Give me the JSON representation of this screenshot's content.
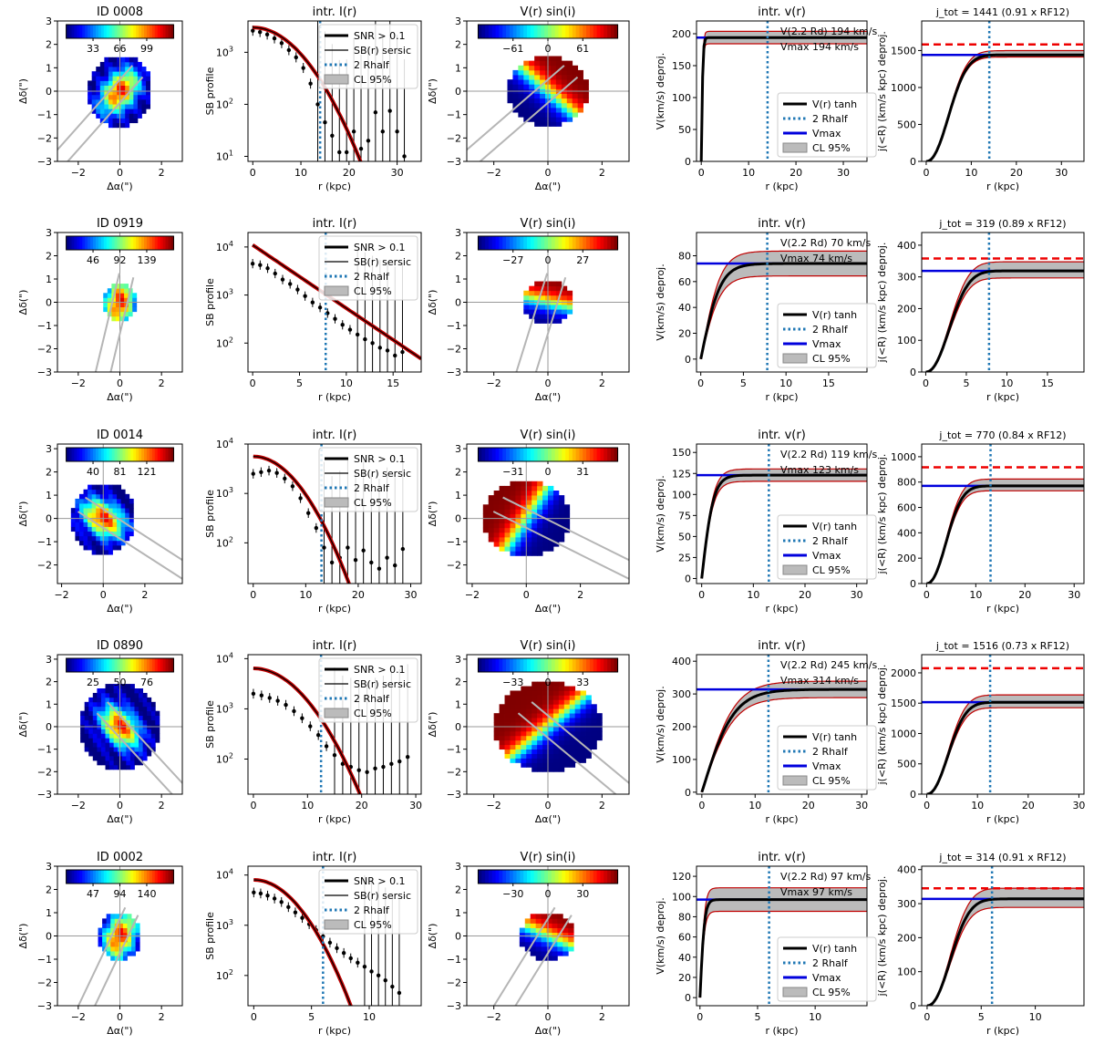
{
  "figure": {
    "panel_titles": [
      "intr. I(r)",
      "V(r) sin(i)",
      "intr. v(r)"
    ],
    "axis_labels": {
      "map_x": "Δα(\")",
      "map_y": "Δδ(\")",
      "sb_y": "SB profile",
      "r_x": "r (kpc)",
      "v_y": "V(km/s) deproj.",
      "j_y": "j(<R) (km/s kpc) deproj."
    },
    "legend_sb": [
      "SNR > 0.1",
      "SB(r) sersic",
      "2 Rhalf",
      "CL 95%"
    ],
    "legend_v": [
      "V(r) tanh",
      "2 Rhalf",
      "Vmax",
      "CL 95%"
    ],
    "colors": {
      "model": "#000000",
      "model_red": "#c00000",
      "rhalf": "#1f77b4",
      "vmax": "#0000dd",
      "jref": "#ee0000",
      "band": "#bbbbbb",
      "axis": "#999999"
    }
  },
  "chart_data": [
    {
      "type": "line",
      "galaxy_id": "ID 0008",
      "flux_map": {
        "title": "ID 0008",
        "cbar_ticks": [
          "33",
          "66",
          "99"
        ],
        "xticks": [
          "−2",
          "0",
          "2"
        ],
        "yticks": [
          "3",
          "2",
          "1",
          "0",
          "−1",
          "−2",
          "−3"
        ],
        "xlim": [
          -3,
          3
        ],
        "ylim": [
          -3,
          3
        ],
        "radius_arcsec": 1.55,
        "pa_deg": 45
      },
      "sb_profile": {
        "title": "intr. I(r)",
        "yscale": "log",
        "ylim": [
          8,
          4000
        ],
        "yticks": [
          10,
          100,
          1000
        ],
        "xlim": [
          -1,
          35
        ],
        "xticks": [
          0,
          10,
          20,
          30
        ],
        "rhalf2": 14,
        "model_peak": 3000,
        "model_scale": 9.2,
        "model_n": 2,
        "points": {
          "r": [
            0,
            1.5,
            3,
            4.5,
            6,
            7.5,
            9,
            10.5,
            12,
            13.5,
            15,
            16.5,
            18,
            19.5,
            21,
            22.5,
            24,
            25.5,
            27,
            28.5,
            30,
            31.5
          ],
          "sb": [
            2600,
            2450,
            2200,
            1850,
            1500,
            1100,
            800,
            500,
            250,
            100,
            45,
            25,
            12,
            12,
            30,
            14,
            20,
            70,
            30,
            75,
            30,
            10
          ]
        }
      },
      "vel_map": {
        "title": "V(r) sin(i)",
        "cbar_ticks": [
          "−61",
          "0",
          "61"
        ],
        "xticks": [
          "−2",
          "0",
          "2"
        ],
        "yticks": [
          "3",
          "2",
          "1",
          "0",
          "−1",
          "−2",
          "−3"
        ],
        "radius_arcsec": 1.5,
        "pa_deg": 45
      },
      "rot_curve": {
        "title": "intr. v(r)",
        "xlim": [
          -1,
          35
        ],
        "xticks": [
          0,
          10,
          20,
          30
        ],
        "ylim": [
          0,
          220
        ],
        "yticks": [
          0,
          50,
          100,
          150,
          200
        ],
        "rhalf2": 14,
        "vmax": 194,
        "rt": 0.35,
        "band_frac": 0.05,
        "v22_text": "V(2.2 Rd) 194 km/s",
        "vmax_text": "Vmax 194 km/s"
      },
      "j_profile": {
        "title": "j_tot = 1441 (0.91 x RF12)",
        "xlim": [
          -1,
          35
        ],
        "xticks": [
          0,
          10,
          20,
          30
        ],
        "ylim": [
          0,
          1900
        ],
        "yticks": [
          0,
          500,
          1000,
          1500
        ],
        "rhalf2": 14,
        "jtot": 1441,
        "jref": 1583,
        "scale": 6.5,
        "band_frac": 0.02
      }
    },
    {
      "type": "line",
      "galaxy_id": "ID 0919",
      "flux_map": {
        "title": "ID 0919",
        "cbar_ticks": [
          "46",
          "92",
          "139"
        ],
        "xticks": [
          "−2",
          "0",
          "2"
        ],
        "yticks": [
          "3",
          "2",
          "1",
          "0",
          "−1",
          "−2",
          "−3"
        ],
        "xlim": [
          -3,
          3
        ],
        "ylim": [
          -3,
          3
        ],
        "radius_arcsec": 0.8,
        "pa_deg": 75
      },
      "sb_profile": {
        "title": "intr. I(r)",
        "yscale": "log",
        "ylim": [
          25,
          20000
        ],
        "yticks": [
          100,
          1000,
          10000
        ],
        "xlim": [
          -0.5,
          18
        ],
        "xticks": [
          0,
          5,
          10,
          15
        ],
        "rhalf2": 7.8,
        "model_peak": 11000,
        "model_scale": 3.3,
        "model_n": 1,
        "points": {
          "r": [
            0,
            0.8,
            1.6,
            2.4,
            3.2,
            4,
            4.8,
            5.6,
            6.4,
            7.2,
            8,
            8.8,
            9.6,
            10.4,
            11.2,
            12,
            12.8,
            13.6,
            14.4,
            15.2,
            16
          ],
          "sb": [
            4500,
            4200,
            3600,
            2800,
            2100,
            1700,
            1300,
            950,
            700,
            550,
            420,
            320,
            240,
            190,
            150,
            120,
            100,
            80,
            70,
            55,
            65
          ]
        }
      },
      "vel_map": {
        "title": "V(r) sin(i)",
        "cbar_ticks": [
          "−27",
          "0",
          "27"
        ],
        "xticks": [
          "−2",
          "0",
          "2"
        ],
        "yticks": [
          "3",
          "2",
          "1",
          "0",
          "−1",
          "−2",
          "−3"
        ],
        "radius_arcsec": 0.9,
        "pa_deg": 75
      },
      "rot_curve": {
        "title": "intr. v(r)",
        "xlim": [
          -0.5,
          19.5
        ],
        "xticks": [
          0,
          5,
          10,
          15
        ],
        "ylim": [
          -10,
          98
        ],
        "yticks": [
          0,
          20,
          40,
          60,
          80
        ],
        "rhalf2": 7.8,
        "vmax": 74,
        "rt": 2.3,
        "band_frac": 0.13,
        "v22_text": "V(2.2 Rd) 70 km/s",
        "vmax_text": "Vmax 74 km/s"
      },
      "j_profile": {
        "title": "j_tot = 319 (0.89 x RF12)",
        "xlim": [
          -0.5,
          19.5
        ],
        "xticks": [
          0,
          5,
          10,
          15
        ],
        "ylim": [
          0,
          440
        ],
        "yticks": [
          0,
          100,
          200,
          300,
          400
        ],
        "rhalf2": 7.8,
        "jtot": 319,
        "jref": 358,
        "scale": 3.8,
        "band_frac": 0.07
      }
    },
    {
      "type": "line",
      "galaxy_id": "ID 0014",
      "flux_map": {
        "title": "ID 0014",
        "cbar_ticks": [
          "40",
          "81",
          "121"
        ],
        "xticks": [
          "−2",
          "0",
          "2"
        ],
        "yticks": [
          "3",
          "2",
          "1",
          "0",
          "−1",
          "−2"
        ],
        "xlim": [
          -2.2,
          3.8
        ],
        "ylim": [
          -2.8,
          3.2
        ],
        "radius_arcsec": 1.55,
        "pa_deg": 150
      },
      "sb_profile": {
        "title": "intr. I(r)",
        "yscale": "log",
        "ylim": [
          15,
          10000
        ],
        "yticks": [
          100,
          1000,
          10000
        ],
        "xlim": [
          -1,
          32
        ],
        "xticks": [
          0,
          10,
          20,
          30
        ],
        "rhalf2": 13,
        "model_peak": 5600,
        "model_scale": 7.5,
        "model_n": 2,
        "points": {
          "r": [
            0,
            1.5,
            3,
            4.5,
            6,
            7.5,
            9,
            10.5,
            12,
            13.5,
            15,
            16.5,
            18,
            19.5,
            21,
            22.5,
            24,
            25.5,
            27,
            28.5
          ],
          "sb": [
            2500,
            2700,
            2900,
            2600,
            2000,
            1400,
            800,
            400,
            200,
            80,
            40,
            50,
            80,
            45,
            70,
            40,
            30,
            50,
            35,
            75
          ]
        }
      },
      "vel_map": {
        "title": "V(r) sin(i)",
        "cbar_ticks": [
          "−31",
          "0",
          "31"
        ],
        "xticks": [
          "−2",
          "0",
          "2"
        ],
        "yticks": [
          "3",
          "2",
          "1",
          "0",
          "−1",
          "−2"
        ],
        "radius_arcsec": 1.6,
        "pa_deg": 150
      },
      "rot_curve": {
        "title": "intr. v(r)",
        "xlim": [
          -1,
          32
        ],
        "xticks": [
          0,
          10,
          20,
          30
        ],
        "ylim": [
          -6,
          160
        ],
        "yticks": [
          0,
          25,
          50,
          75,
          100,
          125,
          150
        ],
        "rhalf2": 13,
        "vmax": 123,
        "rt": 2.3,
        "band_frac": 0.06,
        "v22_text": "V(2.2 Rd) 119 km/s",
        "vmax_text": "Vmax 123 km/s"
      },
      "j_profile": {
        "title": "j_tot = 770 (0.84 x RF12)",
        "xlim": [
          -1,
          32
        ],
        "xticks": [
          0,
          10,
          20,
          30
        ],
        "ylim": [
          0,
          1100
        ],
        "yticks": [
          0,
          200,
          400,
          600,
          800,
          1000
        ],
        "rhalf2": 13,
        "jtot": 770,
        "jref": 917,
        "scale": 5.2,
        "band_frac": 0.05
      }
    },
    {
      "type": "line",
      "galaxy_id": "ID 0890",
      "flux_map": {
        "title": "ID 0890",
        "cbar_ticks": [
          "25",
          "50",
          "76"
        ],
        "xticks": [
          "−2",
          "0",
          "2"
        ],
        "yticks": [
          "3",
          "2",
          "1",
          "0",
          "−1",
          "−2",
          "−3"
        ],
        "xlim": [
          -3,
          3
        ],
        "ylim": [
          -3,
          3.2
        ],
        "radius_arcsec": 1.9,
        "pa_deg": 135
      },
      "sb_profile": {
        "title": "intr. I(r)",
        "yscale": "log",
        "ylim": [
          20,
          12000
        ],
        "yticks": [
          100,
          1000,
          10000
        ],
        "xlim": [
          -1,
          31
        ],
        "xticks": [
          0,
          10,
          20,
          30
        ],
        "rhalf2": 12.5,
        "model_peak": 6400,
        "model_scale": 8.2,
        "model_n": 2,
        "points": {
          "r": [
            0,
            1.5,
            3,
            4.5,
            6,
            7.5,
            9,
            10.5,
            12,
            13.5,
            15,
            16.5,
            18,
            19.5,
            21,
            22.5,
            24,
            25.5,
            27,
            28.5
          ],
          "sb": [
            2000,
            1850,
            1650,
            1450,
            1200,
            900,
            650,
            450,
            300,
            180,
            120,
            80,
            70,
            60,
            55,
            65,
            70,
            80,
            90,
            110
          ]
        }
      },
      "vel_map": {
        "title": "V(r) sin(i)",
        "cbar_ticks": [
          "−33",
          "0",
          "33"
        ],
        "xticks": [
          "−2",
          "0",
          "2"
        ],
        "yticks": [
          "3",
          "2",
          "1",
          "0",
          "−1",
          "−2",
          "−3"
        ],
        "radius_arcsec": 2.0,
        "pa_deg": 135
      },
      "rot_curve": {
        "title": "intr. v(r)",
        "xlim": [
          -1,
          31
        ],
        "xticks": [
          0,
          10,
          20,
          30
        ],
        "ylim": [
          -6,
          420
        ],
        "yticks": [
          0,
          100,
          200,
          300,
          400
        ],
        "rhalf2": 12.5,
        "vmax": 314,
        "rt": 6,
        "band_frac": 0.08,
        "v22_text": "V(2.2 Rd) 245 km/s",
        "vmax_text": "Vmax 314 km/s"
      },
      "j_profile": {
        "title": "j_tot = 1516 (0.73 x RF12)",
        "xlim": [
          -1,
          31
        ],
        "xticks": [
          0,
          10,
          20,
          30
        ],
        "ylim": [
          0,
          2300
        ],
        "yticks": [
          0,
          500,
          1000,
          1500,
          2000
        ],
        "rhalf2": 12.5,
        "jtot": 1516,
        "jref": 2077,
        "scale": 5.5,
        "band_frac": 0.06
      }
    },
    {
      "type": "line",
      "galaxy_id": "ID 0002",
      "flux_map": {
        "title": "ID 0002",
        "cbar_ticks": [
          "47",
          "94",
          "140"
        ],
        "xticks": [
          "−2",
          "0",
          "2"
        ],
        "yticks": [
          "3",
          "2",
          "1",
          "0",
          "−1",
          "−2",
          "−3"
        ],
        "xlim": [
          -3,
          3
        ],
        "ylim": [
          -3,
          3
        ],
        "radius_arcsec": 1.05,
        "pa_deg": 62
      },
      "sb_profile": {
        "title": "intr. I(r)",
        "yscale": "log",
        "ylim": [
          25,
          15000
        ],
        "yticks": [
          100,
          1000,
          10000
        ],
        "xlim": [
          -0.5,
          14.5
        ],
        "xticks": [
          0,
          5,
          10
        ],
        "rhalf2": 6,
        "model_peak": 8000,
        "model_scale": 3.5,
        "model_n": 2,
        "points": {
          "r": [
            0,
            0.6,
            1.2,
            1.8,
            2.4,
            3,
            3.6,
            4.2,
            4.8,
            5.4,
            6,
            6.6,
            7.2,
            7.8,
            8.4,
            9,
            9.6,
            10.2,
            10.8,
            11.4,
            12,
            12.6
          ],
          "sb": [
            4500,
            4300,
            3900,
            3400,
            2900,
            2300,
            1800,
            1400,
            1050,
            800,
            600,
            450,
            350,
            280,
            220,
            180,
            150,
            120,
            100,
            80,
            60,
            45
          ]
        }
      },
      "vel_map": {
        "title": "V(r) sin(i)",
        "cbar_ticks": [
          "−30",
          "0",
          "30"
        ],
        "xticks": [
          "−2",
          "0",
          "2"
        ],
        "yticks": [
          "3",
          "2",
          "1",
          "0",
          "−1",
          "−2",
          "−3"
        ],
        "radius_arcsec": 1.05,
        "pa_deg": 62
      },
      "rot_curve": {
        "title": "intr. v(r)",
        "xlim": [
          -0.3,
          14.5
        ],
        "xticks": [
          0,
          5,
          10
        ],
        "ylim": [
          -8,
          130
        ],
        "yticks": [
          0,
          20,
          40,
          60,
          80,
          100,
          120
        ],
        "rhalf2": 6,
        "vmax": 97,
        "rt": 0.4,
        "band_frac": 0.12,
        "v22_text": "V(2.2 Rd) 97 km/s",
        "vmax_text": "Vmax 97 km/s"
      },
      "j_profile": {
        "title": "j_tot = 314 (0.91 x RF12)",
        "xlim": [
          -0.5,
          14.5
        ],
        "xticks": [
          0,
          5,
          10
        ],
        "ylim": [
          0,
          410
        ],
        "yticks": [
          0,
          100,
          200,
          300,
          400
        ],
        "rhalf2": 6,
        "jtot": 314,
        "jref": 345,
        "scale": 2.8,
        "band_frac": 0.08
      }
    }
  ]
}
